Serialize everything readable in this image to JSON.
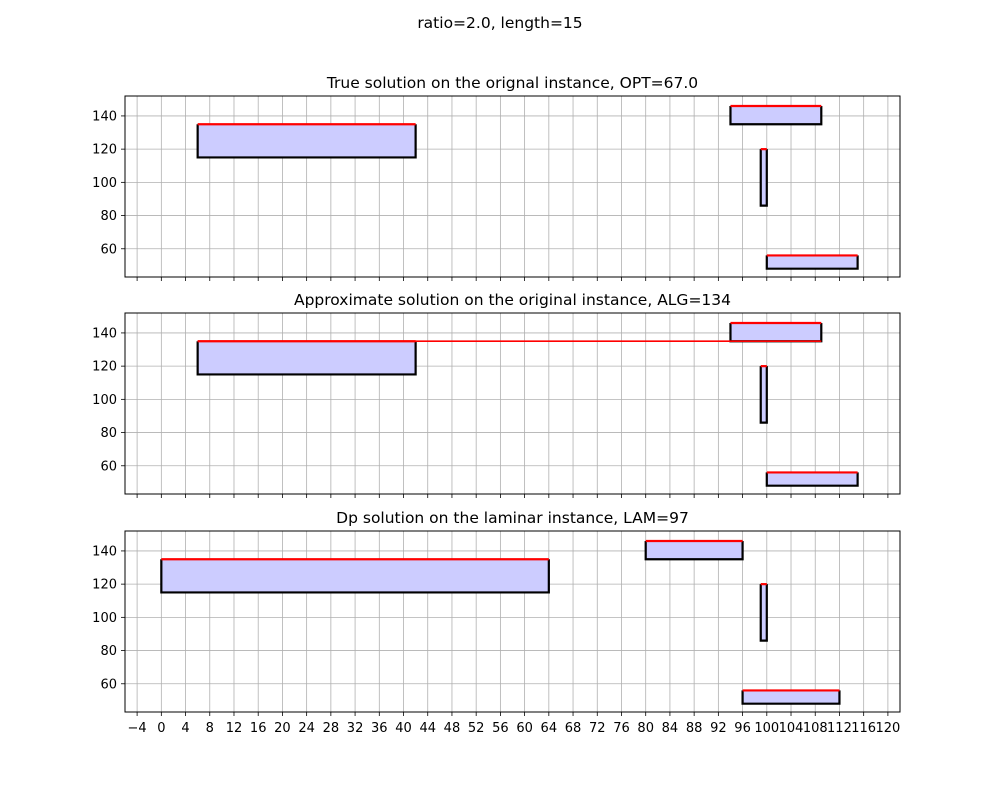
{
  "figure": {
    "suptitle": "ratio=2.0, length=15"
  },
  "style": {
    "fill_color": "#ccccff",
    "edge_color": "#000000",
    "top_color": "#ff0000",
    "grid_color": "#b0b0b0"
  },
  "chart_data": [
    {
      "type": "bar",
      "title": "True solution on the orignal instance, OPT=67.0",
      "xlim": [
        -6,
        122
      ],
      "ylim": [
        43,
        152
      ],
      "grid": true,
      "show_xtick_labels": false,
      "xticks": [
        -4,
        0,
        4,
        8,
        12,
        16,
        20,
        24,
        28,
        32,
        36,
        40,
        44,
        48,
        52,
        56,
        60,
        64,
        68,
        72,
        76,
        80,
        84,
        88,
        92,
        96,
        100,
        104,
        108,
        112,
        116,
        120
      ],
      "yticks": [
        60,
        80,
        100,
        120,
        140
      ],
      "rects": [
        {
          "x0": 6,
          "x1": 42,
          "y0": 115,
          "y1": 135
        },
        {
          "x0": 94,
          "x1": 109,
          "y0": 135,
          "y1": 146
        },
        {
          "x0": 99,
          "x1": 100,
          "y0": 86,
          "y1": 120
        },
        {
          "x0": 100,
          "x1": 115,
          "y0": 48,
          "y1": 56
        }
      ],
      "segments": []
    },
    {
      "type": "bar",
      "title": "Approximate solution on the original instance, ALG=134",
      "xlim": [
        -6,
        122
      ],
      "ylim": [
        43,
        152
      ],
      "grid": true,
      "show_xtick_labels": false,
      "xticks": [
        -4,
        0,
        4,
        8,
        12,
        16,
        20,
        24,
        28,
        32,
        36,
        40,
        44,
        48,
        52,
        56,
        60,
        64,
        68,
        72,
        76,
        80,
        84,
        88,
        92,
        96,
        100,
        104,
        108,
        112,
        116,
        120
      ],
      "yticks": [
        60,
        80,
        100,
        120,
        140
      ],
      "rects": [
        {
          "x0": 6,
          "x1": 42,
          "y0": 115,
          "y1": 135
        },
        {
          "x0": 94,
          "x1": 109,
          "y0": 135,
          "y1": 146
        },
        {
          "x0": 99,
          "x1": 100,
          "y0": 86,
          "y1": 120
        },
        {
          "x0": 100,
          "x1": 115,
          "y0": 48,
          "y1": 56
        }
      ],
      "segments": [
        {
          "x0": 6,
          "x1": 109,
          "y": 135
        }
      ]
    },
    {
      "type": "bar",
      "title": "Dp solution on the laminar instance, LAM=97",
      "xlim": [
        -6,
        122
      ],
      "ylim": [
        43,
        152
      ],
      "grid": true,
      "show_xtick_labels": true,
      "xticks": [
        -4,
        0,
        4,
        8,
        12,
        16,
        20,
        24,
        28,
        32,
        36,
        40,
        44,
        48,
        52,
        56,
        60,
        64,
        68,
        72,
        76,
        80,
        84,
        88,
        92,
        96,
        100,
        104,
        108,
        112,
        116,
        120
      ],
      "xticklabels": [
        "−4",
        "0",
        "4",
        "8",
        "12",
        "16",
        "20",
        "24",
        "28",
        "32",
        "36",
        "40",
        "44",
        "48",
        "52",
        "56",
        "60",
        "64",
        "68",
        "72",
        "76",
        "80",
        "84",
        "88",
        "92",
        "96",
        "100",
        "104",
        "108",
        "112",
        "116",
        "120"
      ],
      "yticks": [
        60,
        80,
        100,
        120,
        140
      ],
      "rects": [
        {
          "x0": 0,
          "x1": 64,
          "y0": 115,
          "y1": 135
        },
        {
          "x0": 80,
          "x1": 96,
          "y0": 135,
          "y1": 146
        },
        {
          "x0": 99,
          "x1": 100,
          "y0": 86,
          "y1": 120
        },
        {
          "x0": 96,
          "x1": 112,
          "y0": 48,
          "y1": 56
        }
      ],
      "segments": []
    }
  ]
}
